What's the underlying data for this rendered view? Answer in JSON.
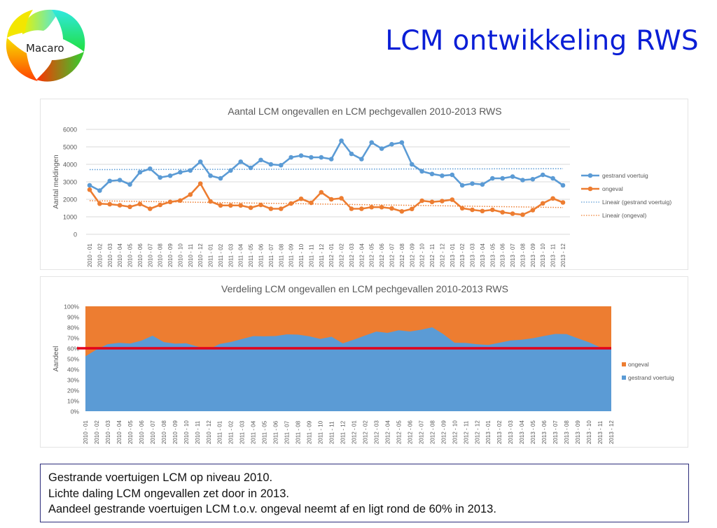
{
  "logo": {
    "text": "Macaro"
  },
  "slide": {
    "title": "LCM ontwikkeling RWS"
  },
  "notes": [
    "Gestrande voertuigen LCM op niveau 2010.",
    "Lichte daling LCM ongevallen zet door in 2013.",
    "Aandeel gestrande voertuigen LCM t.o.v. ongeval neemt af en ligt rond de 60% in 2013."
  ],
  "colors": {
    "blue": "#5b9bd5",
    "orange": "#ed7d31",
    "red_line": "#e3001b",
    "title_blue": "#0a1ed6"
  },
  "chart_data": [
    {
      "type": "line",
      "title": "Aantal LCM ongevallen en LCM pechgevallen 2010-2013 RWS",
      "xlabel": "",
      "ylabel": "Aantal meldingen",
      "ylim": [
        0,
        6000
      ],
      "yticks": [
        "0",
        "1000",
        "2000",
        "3000",
        "4000",
        "5000",
        "6000"
      ],
      "grid": true,
      "legend_position": "right",
      "categories": [
        "2010 - 01",
        "2010 - 02",
        "2010 - 03",
        "2010 - 04",
        "2010 - 05",
        "2010 - 06",
        "2010 - 07",
        "2010 - 08",
        "2010 - 09",
        "2010 - 10",
        "2010 - 11",
        "2010 - 12",
        "2011 - 01",
        "2011 - 02",
        "2011 - 03",
        "2011 - 04",
        "2011 - 05",
        "2011 - 06",
        "2011 - 07",
        "2011 - 08",
        "2011 - 09",
        "2011 - 10",
        "2011 - 11",
        "2011 - 12",
        "2012 - 01",
        "2012 - 02",
        "2012 - 03",
        "2012 - 04",
        "2012 - 05",
        "2012 - 06",
        "2012 - 07",
        "2012 - 08",
        "2012 - 09",
        "2012 - 10",
        "2012 - 11",
        "2012 - 12",
        "2013 - 01",
        "2013 - 02",
        "2013 - 03",
        "2013 - 04",
        "2013 - 05",
        "2013 - 06",
        "2013 - 07",
        "2013 - 08",
        "2013 - 09",
        "2013 - 10",
        "2013 - 11",
        "2013 - 12"
      ],
      "series": [
        {
          "name": "gestrand voertuig",
          "color": "#5b9bd5",
          "values": [
            2800,
            2500,
            3050,
            3100,
            2850,
            3550,
            3750,
            3250,
            3350,
            3550,
            3650,
            4150,
            3350,
            3200,
            3650,
            4150,
            3800,
            4250,
            4000,
            3950,
            4400,
            4500,
            4400,
            4400,
            4300,
            5350,
            4600,
            4300,
            5250,
            4900,
            5150,
            5250,
            4000,
            3600,
            3450,
            3350,
            3400,
            2800,
            2900,
            2850,
            3200,
            3200,
            3300,
            3100,
            3150,
            3400,
            3200,
            2800
          ]
        },
        {
          "name": "ongeval",
          "color": "#ed7d31",
          "values": [
            2550,
            1750,
            1720,
            1660,
            1570,
            1730,
            1460,
            1680,
            1850,
            1930,
            2270,
            2900,
            1880,
            1650,
            1650,
            1650,
            1520,
            1680,
            1460,
            1460,
            1760,
            2030,
            1800,
            2400,
            2000,
            2060,
            1460,
            1460,
            1550,
            1550,
            1480,
            1310,
            1450,
            1920,
            1850,
            1900,
            1980,
            1490,
            1400,
            1330,
            1400,
            1260,
            1180,
            1120,
            1380,
            1770,
            2050,
            1820
          ]
        }
      ],
      "trendlines": [
        {
          "name": "Lineair (gestrand voertuig)",
          "color": "#5b9bd5",
          "start": 3700,
          "end": 3750
        },
        {
          "name": "Lineair (ongeval)",
          "color": "#ed7d31",
          "start": 1920,
          "end": 1530
        }
      ]
    },
    {
      "type": "area",
      "stacked": "percent",
      "title": "Verdeling LCM ongevallen en LCM pechgevallen 2010-2013 RWS",
      "xlabel": "",
      "ylabel": "Aandeel",
      "ylim": [
        0,
        100
      ],
      "yticks": [
        "0%",
        "10%",
        "20%",
        "30%",
        "40%",
        "50%",
        "60%",
        "70%",
        "80%",
        "90%",
        "100%"
      ],
      "legend_position": "right",
      "legend": [
        "ongeval",
        "gestrand voertuig"
      ],
      "reference_line": {
        "value": 60,
        "color": "#e3001b"
      },
      "note": "shares derived from series of chart 1: gestrand voertuig / (gestrand voertuig + ongeval)"
    }
  ]
}
